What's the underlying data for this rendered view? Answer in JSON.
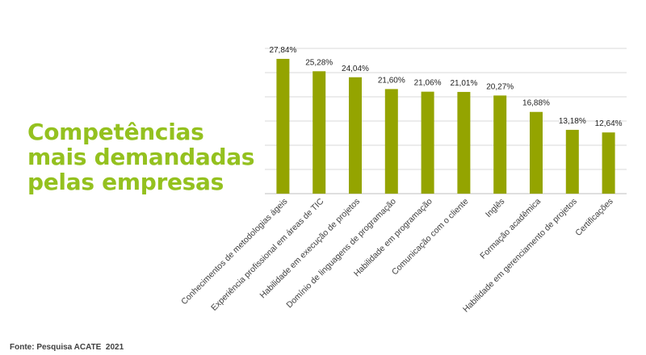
{
  "title_lines": [
    "Competências",
    "mais demandadas",
    "pelas empresas"
  ],
  "source": "Fonte: Pesquisa ACATE  2021",
  "colors": {
    "bar": "#94a400",
    "title": "#94c11f",
    "grid": "#d9d9d9"
  },
  "chart_data": {
    "type": "bar",
    "categories": [
      "Conhecimentos de metodologias ágeis",
      "Experiência profissional em áreas de TIC",
      "Habilidade em execução de projetos",
      "Domínio de linguagens de programação",
      "Habilidade em programação",
      "Comunicação com o cliente",
      "Inglês",
      "Formação acadêmica",
      "Habilidade em gerenciamento de projetos",
      "Certificações"
    ],
    "values": [
      27.84,
      25.28,
      24.04,
      21.6,
      21.06,
      21.01,
      20.27,
      16.88,
      13.18,
      12.64
    ],
    "labels": [
      "27,84%",
      "25,28%",
      "24,04%",
      "21,60%",
      "21,06%",
      "21,01%",
      "20,27%",
      "16,88%",
      "13,18%",
      "12,64%"
    ],
    "ylim": [
      0,
      30
    ],
    "grid": true,
    "title": "",
    "xlabel": "",
    "ylabel": ""
  }
}
